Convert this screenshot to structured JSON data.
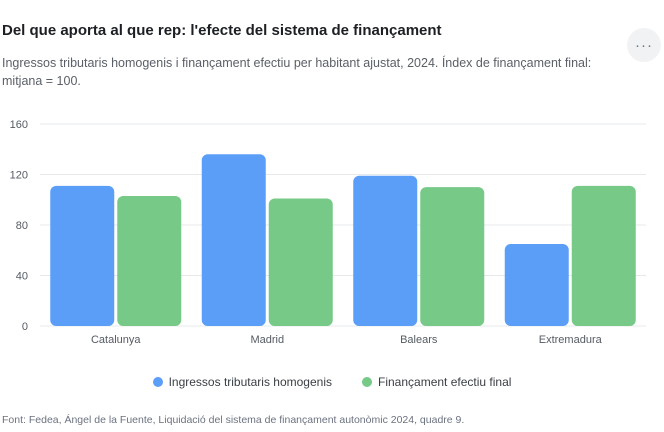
{
  "header": {
    "title": "Del que aporta al que rep: l'efecte del sistema de finançament",
    "subtitle": "Ingressos tributaris homogenis i finançament efectiu per habitant ajustat, 2024. Índex de finançament final: mitjana = 100.",
    "menu_label": "···"
  },
  "footer": {
    "source": "Font: Fedea, Ángel de la Fuente, Liquidació del sistema de finançament autonòmic 2024, quadre 9."
  },
  "colors": {
    "series_1": "#5b9ef7",
    "series_2": "#76c986",
    "grid": "#e6e8eb",
    "axis_text": "#555b63"
  },
  "chart_data": {
    "type": "bar",
    "categories": [
      "Catalunya",
      "Madrid",
      "Balears",
      "Extremadura"
    ],
    "series": [
      {
        "name": "Ingressos tributaris homogenis",
        "values": [
          111,
          136,
          119,
          65
        ]
      },
      {
        "name": "Finançament efectiu final",
        "values": [
          103,
          101,
          110,
          111
        ]
      }
    ],
    "yticks": [
      0,
      40,
      80,
      120,
      160
    ],
    "ylim": [
      0,
      160
    ],
    "grid": true,
    "legend_position": "bottom"
  }
}
